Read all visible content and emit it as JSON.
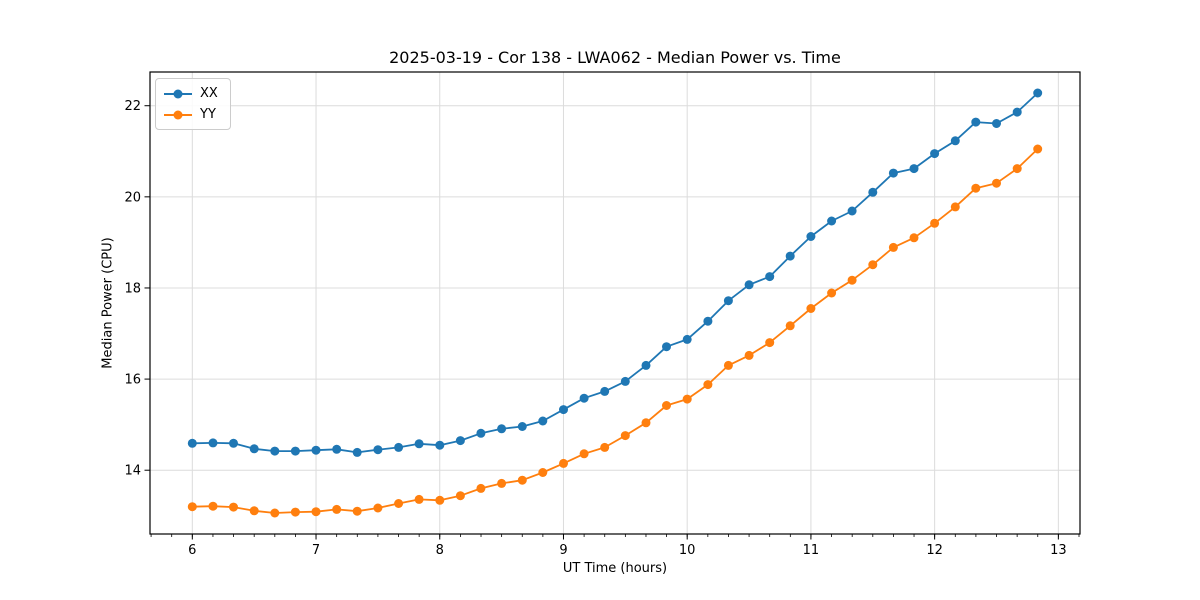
{
  "chart_data": {
    "type": "line",
    "title": "2025-03-19 - Cor 138 - LWA062 - Median Power vs. Time",
    "xlabel": "UT Time (hours)",
    "ylabel": "Median Power (CPU)",
    "xlim": [
      5.658,
      13.175
    ],
    "ylim": [
      12.6,
      22.74
    ],
    "x_ticks": [
      6,
      7,
      8,
      9,
      10,
      11,
      12,
      13
    ],
    "y_ticks": [
      14,
      16,
      18,
      20,
      22
    ],
    "x_minor_tick_step": 0.16667,
    "grid": true,
    "legend_position": "upper left",
    "marker": "circle",
    "colors": {
      "grid": "#dcdcdc",
      "spine": "#000000",
      "text": "#000000",
      "background": "#ffffff"
    },
    "x": [
      6.0,
      6.167,
      6.333,
      6.5,
      6.667,
      6.833,
      7.0,
      7.167,
      7.333,
      7.5,
      7.667,
      7.833,
      8.0,
      8.167,
      8.333,
      8.5,
      8.667,
      8.833,
      9.0,
      9.167,
      9.333,
      9.5,
      9.667,
      9.833,
      10.0,
      10.167,
      10.333,
      10.5,
      10.667,
      10.833,
      11.0,
      11.167,
      11.333,
      11.5,
      11.667,
      11.833,
      12.0,
      12.167,
      12.333,
      12.5,
      12.667,
      12.833
    ],
    "series": [
      {
        "name": "XX",
        "color": "#1f77b4",
        "values": [
          14.59,
          14.6,
          14.59,
          14.47,
          14.42,
          14.42,
          14.44,
          14.46,
          14.39,
          14.45,
          14.5,
          14.58,
          14.55,
          14.65,
          14.81,
          14.91,
          14.96,
          15.08,
          15.33,
          15.58,
          15.73,
          15.95,
          16.3,
          16.71,
          16.87,
          17.27,
          17.72,
          18.07,
          18.25,
          18.7,
          19.13,
          19.47,
          19.69,
          20.1,
          20.52,
          20.62,
          20.95,
          21.23,
          21.64,
          21.61,
          21.86,
          22.28
        ]
      },
      {
        "name": "YY",
        "color": "#ff7f0e",
        "values": [
          13.2,
          13.21,
          13.19,
          13.11,
          13.06,
          13.08,
          13.09,
          13.14,
          13.1,
          13.17,
          13.27,
          13.36,
          13.34,
          13.44,
          13.6,
          13.71,
          13.78,
          13.95,
          14.15,
          14.36,
          14.5,
          14.76,
          15.04,
          15.42,
          15.56,
          15.88,
          16.3,
          16.52,
          16.8,
          17.17,
          17.55,
          17.89,
          18.17,
          18.51,
          18.89,
          19.1,
          19.42,
          19.78,
          20.19,
          20.3,
          20.62,
          21.05
        ]
      }
    ]
  }
}
